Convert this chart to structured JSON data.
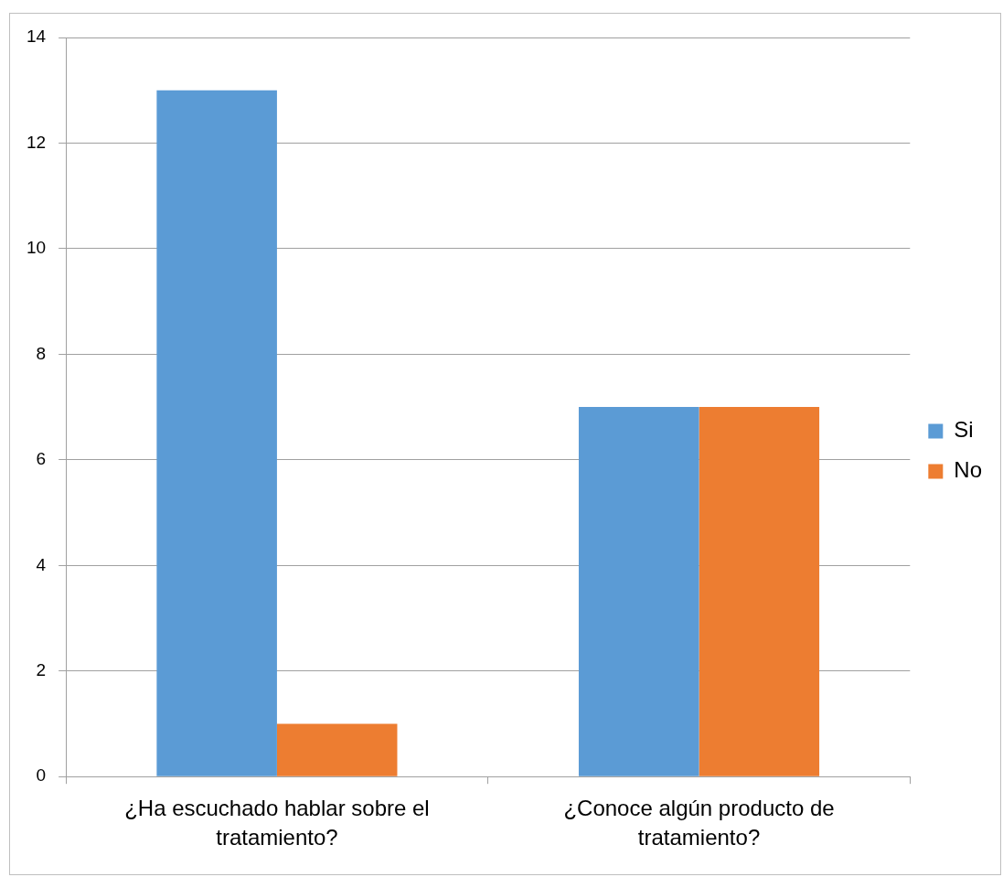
{
  "chart_data": {
    "type": "bar",
    "categories": [
      "¿Ha escuchado hablar sobre el tratamiento?",
      "¿Conoce algún producto de tratamiento?"
    ],
    "series": [
      {
        "name": "Si",
        "color": "#5b9bd5",
        "values": [
          13,
          7
        ]
      },
      {
        "name": "No",
        "color": "#ed7d31",
        "values": [
          1,
          7
        ]
      }
    ],
    "ylim": [
      0,
      14
    ],
    "yticks": [
      0,
      2,
      4,
      6,
      8,
      10,
      12,
      14
    ],
    "grid": "y",
    "legend": "right"
  }
}
